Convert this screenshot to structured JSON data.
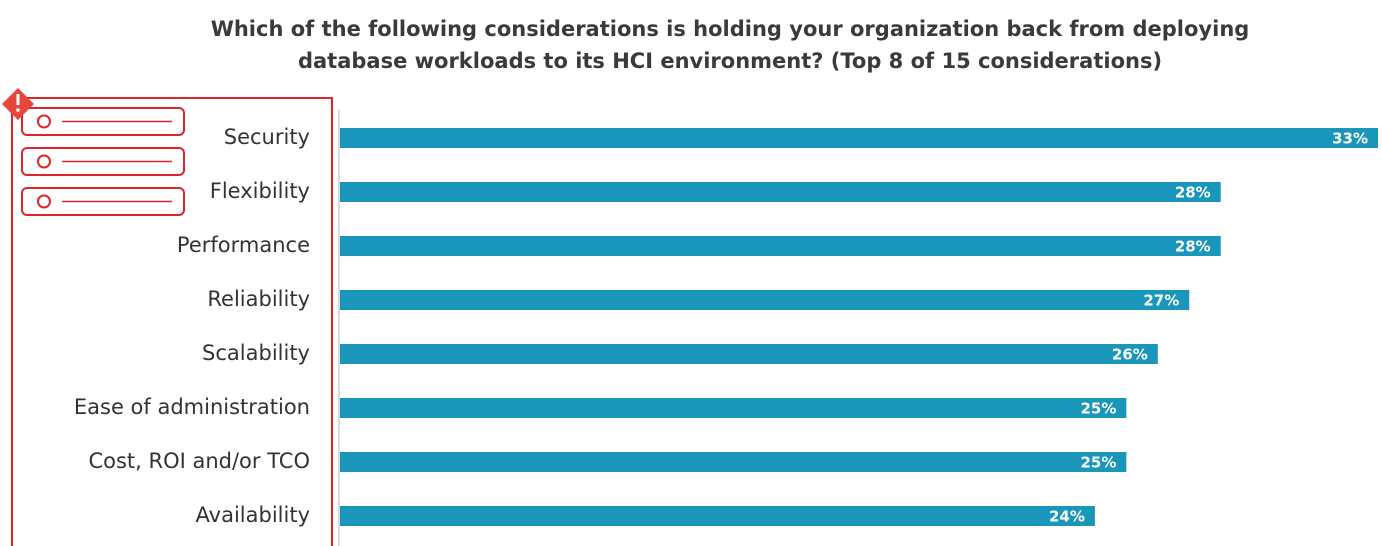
{
  "chart_data": {
    "type": "bar",
    "orientation": "horizontal",
    "title": [
      "Which of the following considerations is holding your organization back from deploying",
      "database workloads to its HCI environment?  (Top 8 of 15 considerations)"
    ],
    "categories": [
      "Security",
      "Flexibility",
      "Performance",
      "Reliability",
      "Scalability",
      "Ease of administration",
      "Cost, ROI and/or TCO",
      "Availability"
    ],
    "values": [
      33,
      28,
      28,
      27,
      26,
      25,
      25,
      24
    ],
    "value_labels": [
      "33%",
      "28%",
      "28%",
      "27%",
      "26%",
      "25%",
      "25%",
      "24%"
    ],
    "color": "#1a96bb"
  }
}
